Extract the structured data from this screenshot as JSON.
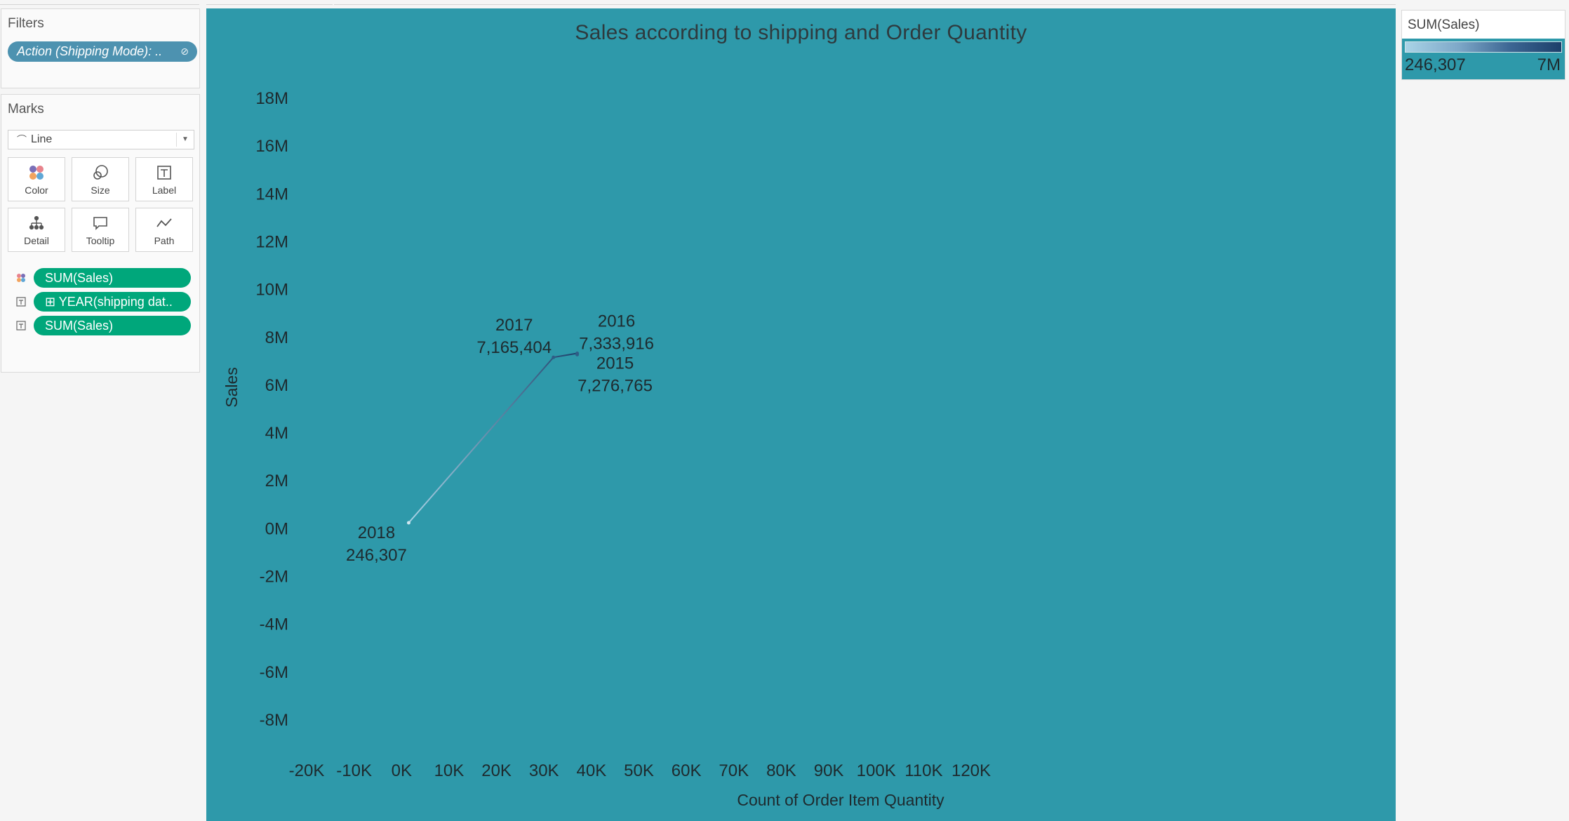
{
  "filters": {
    "title": "Filters",
    "pill_label": "Action (Shipping Mode): .."
  },
  "marks": {
    "title": "Marks",
    "mark_type": "Line",
    "buttons": [
      {
        "label": "Color",
        "icon": "color-dots-icon"
      },
      {
        "label": "Size",
        "icon": "size-circles-icon"
      },
      {
        "label": "Label",
        "icon": "label-text-icon"
      },
      {
        "label": "Detail",
        "icon": "detail-tree-icon"
      },
      {
        "label": "Tooltip",
        "icon": "tooltip-bubble-icon"
      },
      {
        "label": "Path",
        "icon": "path-line-icon"
      }
    ],
    "shelf": [
      {
        "icon": "color-dots-icon",
        "label": "SUM(Sales)"
      },
      {
        "icon": "label-text-icon",
        "label": "⊞ YEAR(shipping dat.."
      },
      {
        "icon": "label-text-icon",
        "label": "SUM(Sales)"
      }
    ]
  },
  "legend": {
    "title": "SUM(Sales)",
    "min_label": "246,307",
    "max_label": "7M"
  },
  "colors": {
    "plot_background": "#2e99aa",
    "pill_dimension": "#00a77b",
    "pill_filter": "#4d92b0",
    "line_light": "#a9d3e6",
    "line_dark": "#1c3f6a"
  },
  "chart_data": {
    "type": "line",
    "title": "Sales according to shipping and Order Quantity",
    "xlabel": "Count of Order Item Quantity",
    "ylabel": "Sales",
    "xlim": [
      -20000,
      120000
    ],
    "ylim": [
      -8000000,
      18000000
    ],
    "x_ticks": [
      -20000,
      -10000,
      0,
      10000,
      20000,
      30000,
      40000,
      50000,
      60000,
      70000,
      80000,
      90000,
      100000,
      110000,
      120000
    ],
    "x_tick_labels": [
      "-20K",
      "-10K",
      "0K",
      "10K",
      "20K",
      "30K",
      "40K",
      "50K",
      "60K",
      "70K",
      "80K",
      "90K",
      "100K",
      "110K",
      "120K"
    ],
    "y_ticks": [
      18000000,
      16000000,
      14000000,
      12000000,
      10000000,
      8000000,
      6000000,
      4000000,
      2000000,
      0,
      -2000000,
      -4000000,
      -6000000,
      -8000000
    ],
    "y_tick_labels": [
      "18M",
      "16M",
      "14M",
      "12M",
      "10M",
      "8M",
      "6M",
      "4M",
      "2M",
      "0M",
      "-2M",
      "-4M",
      "-6M",
      "-8M"
    ],
    "grid": false,
    "points": [
      {
        "year": "2018",
        "x": 1500,
        "y": 246307,
        "label": "246,307"
      },
      {
        "year": "2017",
        "x": 32000,
        "y": 7165404,
        "label": "7,165,404"
      },
      {
        "year": "2016",
        "x": 37000,
        "y": 7333916,
        "label": "7,333,916"
      },
      {
        "year": "2015",
        "x": 37000,
        "y": 7276765,
        "label": "7,276,765"
      }
    ]
  }
}
